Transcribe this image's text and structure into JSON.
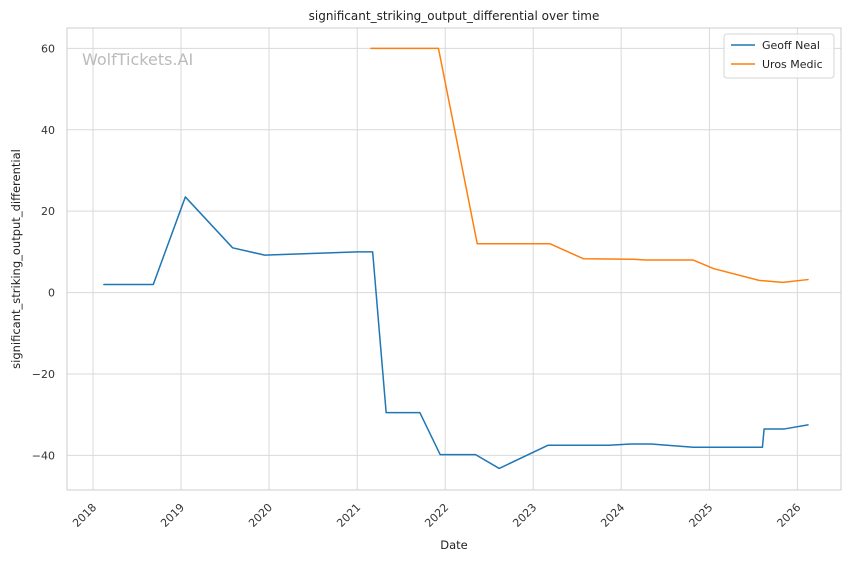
{
  "chart_data": {
    "type": "line",
    "title": "significant_striking_output_differential over time",
    "xlabel": "Date",
    "ylabel": "significant_striking_output_differential",
    "watermark": "WolfTickets.AI",
    "xlim": [
      "2017-09-15",
      "2026-07-01"
    ],
    "ylim": [
      -48.5,
      65
    ],
    "x_ticks": [
      {
        "date": "2018-01-01",
        "label": "2018"
      },
      {
        "date": "2019-01-01",
        "label": "2019"
      },
      {
        "date": "2020-01-01",
        "label": "2020"
      },
      {
        "date": "2021-01-01",
        "label": "2021"
      },
      {
        "date": "2022-01-01",
        "label": "2022"
      },
      {
        "date": "2023-01-01",
        "label": "2023"
      },
      {
        "date": "2024-01-01",
        "label": "2024"
      },
      {
        "date": "2025-01-01",
        "label": "2025"
      },
      {
        "date": "2026-01-01",
        "label": "2026"
      }
    ],
    "y_ticks": [
      {
        "value": 60,
        "label": "60"
      },
      {
        "value": 40,
        "label": "40"
      },
      {
        "value": 20,
        "label": "20"
      },
      {
        "value": 0,
        "label": "0"
      },
      {
        "value": -20,
        "label": "−20"
      },
      {
        "value": -40,
        "label": "−40"
      }
    ],
    "grid": true,
    "legend_position": "top-right",
    "series": [
      {
        "name": "Geoff Neal",
        "color": "#1f77b4",
        "points": [
          [
            "2018-02-15",
            2.0
          ],
          [
            "2018-09-08",
            2.0
          ],
          [
            "2019-01-19",
            23.5
          ],
          [
            "2019-08-03",
            11.0
          ],
          [
            "2019-12-14",
            9.2
          ],
          [
            "2021-01-01",
            10.0
          ],
          [
            "2021-03-06",
            10.0
          ],
          [
            "2021-05-01",
            -29.5
          ],
          [
            "2021-09-18",
            -29.5
          ],
          [
            "2021-12-11",
            -39.8
          ],
          [
            "2022-05-07",
            -39.8
          ],
          [
            "2022-08-13",
            -43.2
          ],
          [
            "2023-03-04",
            -37.5
          ],
          [
            "2023-11-11",
            -37.5
          ],
          [
            "2024-02-10",
            -37.2
          ],
          [
            "2024-05-04",
            -37.2
          ],
          [
            "2024-10-26",
            -38.0
          ],
          [
            "2025-08-09",
            -38.0
          ],
          [
            "2025-08-16",
            -33.5
          ],
          [
            "2025-11-08",
            -33.5
          ],
          [
            "2026-02-14",
            -32.5
          ]
        ]
      },
      {
        "name": "Uros Medic",
        "color": "#ff7f0e",
        "points": [
          [
            "2021-02-27",
            60.0
          ],
          [
            "2021-12-04",
            60.0
          ],
          [
            "2022-05-14",
            12.0
          ],
          [
            "2023-03-11",
            12.0
          ],
          [
            "2023-07-29",
            8.3
          ],
          [
            "2024-02-17",
            8.2
          ],
          [
            "2024-04-13",
            8.0
          ],
          [
            "2024-10-26",
            8.0
          ],
          [
            "2025-01-18",
            5.9
          ],
          [
            "2025-07-26",
            3.0
          ],
          [
            "2025-11-01",
            2.5
          ],
          [
            "2026-02-14",
            3.2
          ]
        ]
      }
    ]
  }
}
